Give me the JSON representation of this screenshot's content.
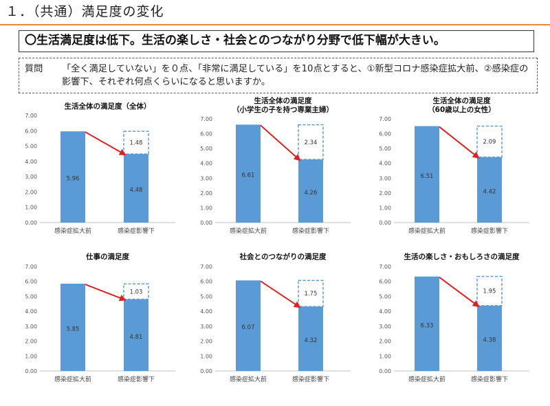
{
  "page": {
    "title": "１．（共通）満足度の変化",
    "summary": "〇生活満足度は低下。生活の楽しさ・社会とのつながり分野で低下幅が大きい。",
    "question_label": "質問",
    "question_text": "「全く満足していない」を０点、「非常に満足している」を10点とすると、①新型コロナ感染症拡大前、②感染症の影響下、それぞれ何点くらいになると思いますか。"
  },
  "colors": {
    "bar": "#5b9bd5",
    "arrow": "#e02020",
    "dashed_box": "#5b9bd5",
    "accent_rule": "#e58a2a"
  },
  "chart_data": [
    {
      "type": "bar",
      "title": "生活全体の満足度（全体）",
      "subtitle": "",
      "categories": [
        "感染症拡大前",
        "感染症影響下"
      ],
      "values": [
        5.96,
        4.48
      ],
      "diff": 1.48,
      "ylim": [
        0,
        7
      ],
      "yticks": [
        "0.00",
        "1.00",
        "2.00",
        "3.00",
        "4.00",
        "5.00",
        "6.00",
        "7.00"
      ],
      "labels": [
        "5.96",
        "4.48"
      ],
      "diff_label": "1.48"
    },
    {
      "type": "bar",
      "title": "生活全体の満足度",
      "subtitle": "（小学生の子を持つ専業主婦）",
      "categories": [
        "感染症拡大前",
        "感染症影響下"
      ],
      "values": [
        6.61,
        4.26
      ],
      "diff": 2.34,
      "ylim": [
        0,
        7
      ],
      "yticks": [
        "0.00",
        "1.00",
        "2.00",
        "3.00",
        "4.00",
        "5.00",
        "6.00",
        "7.00"
      ],
      "labels": [
        "6.61",
        "4.26"
      ],
      "diff_label": "2.34"
    },
    {
      "type": "bar",
      "title": "生活全体の満足度",
      "subtitle": "（60歳以上の女性）",
      "categories": [
        "感染症拡大前",
        "感染症影響下"
      ],
      "values": [
        6.51,
        4.42
      ],
      "diff": 2.09,
      "ylim": [
        0,
        7
      ],
      "yticks": [
        "0.00",
        "1.00",
        "2.00",
        "3.00",
        "4.00",
        "5.00",
        "6.00",
        "7.00"
      ],
      "labels": [
        "6.51",
        "4.42"
      ],
      "diff_label": "2.09"
    },
    {
      "type": "bar",
      "title": "仕事の満足度",
      "subtitle": "",
      "categories": [
        "感染症拡大前",
        "感染症影響下"
      ],
      "values": [
        5.85,
        4.81
      ],
      "diff": 1.03,
      "ylim": [
        0,
        7
      ],
      "yticks": [
        "0.00",
        "1.00",
        "2.00",
        "3.00",
        "4.00",
        "5.00",
        "6.00",
        "7.00"
      ],
      "labels": [
        "5.85",
        "4.81"
      ],
      "diff_label": "1.03"
    },
    {
      "type": "bar",
      "title": "社会とのつながりの満足度",
      "subtitle": "",
      "categories": [
        "感染症拡大前",
        "感染症影響下"
      ],
      "values": [
        6.07,
        4.32
      ],
      "diff": 1.75,
      "ylim": [
        0,
        7
      ],
      "yticks": [
        "0.00",
        "1.00",
        "2.00",
        "3.00",
        "4.00",
        "5.00",
        "6.00",
        "7.00"
      ],
      "labels": [
        "6.07",
        "4.32"
      ],
      "diff_label": "1.75"
    },
    {
      "type": "bar",
      "title": "生活の楽しさ・おもしろさの満足度",
      "subtitle": "",
      "categories": [
        "感染症拡大前",
        "感染症影響下"
      ],
      "values": [
        6.33,
        4.38
      ],
      "diff": 1.95,
      "ylim": [
        0,
        7
      ],
      "yticks": [
        "0.00",
        "1.00",
        "2.00",
        "3.00",
        "4.00",
        "5.00",
        "6.00",
        "7.00"
      ],
      "labels": [
        "6.33",
        "4.38"
      ],
      "diff_label": "1.95"
    }
  ]
}
